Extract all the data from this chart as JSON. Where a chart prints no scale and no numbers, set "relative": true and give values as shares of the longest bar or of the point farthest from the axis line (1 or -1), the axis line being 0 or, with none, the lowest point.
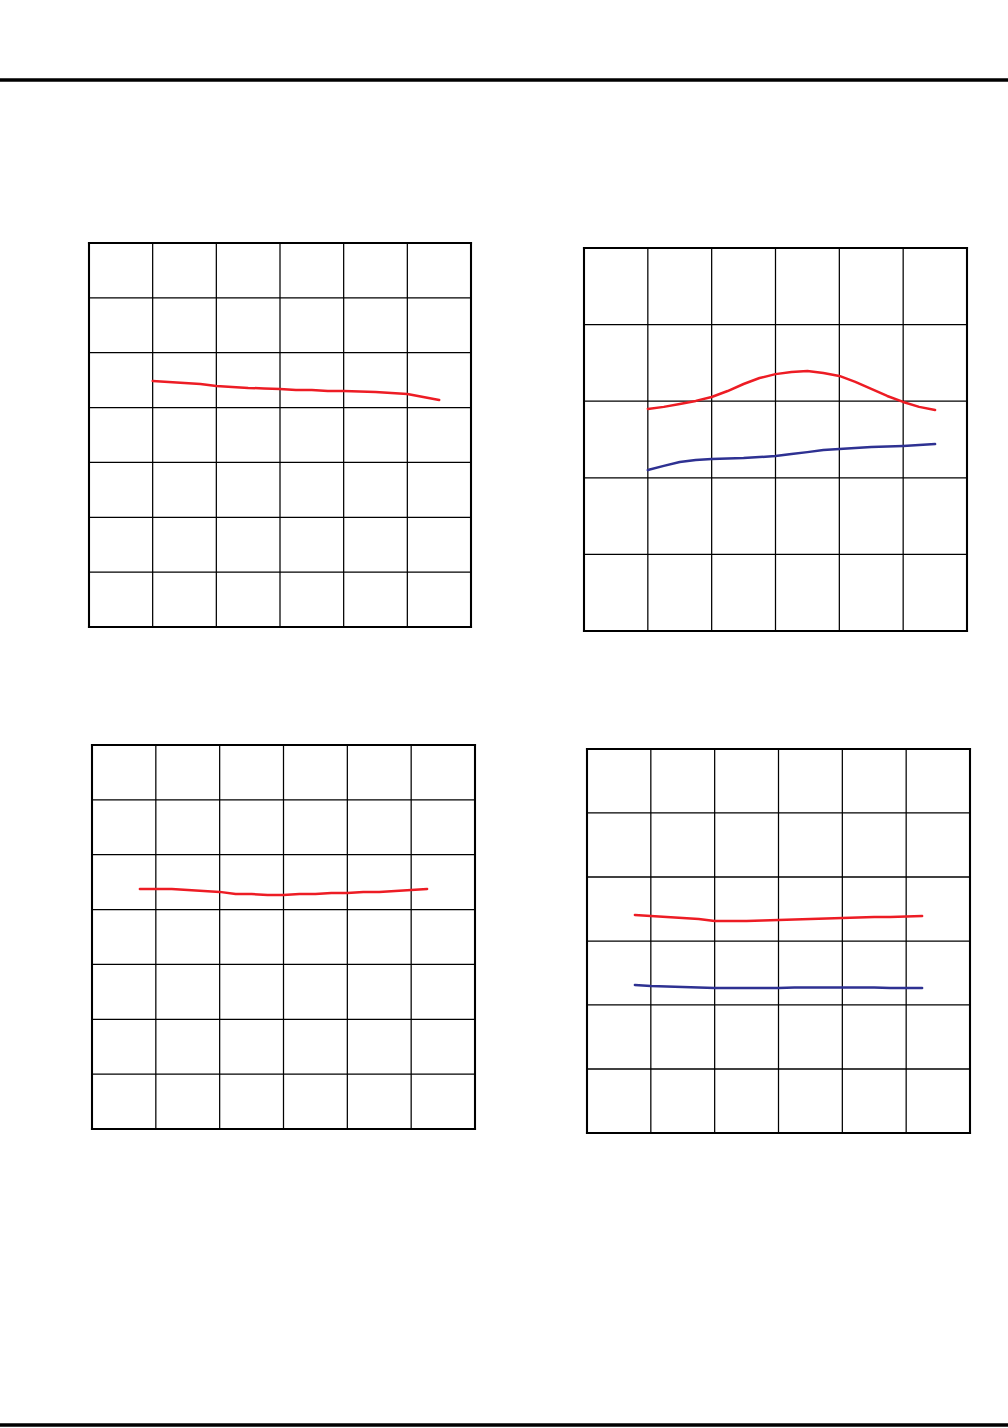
{
  "chart_data": [
    {
      "type": "line",
      "relative": true,
      "grid": true,
      "categories": [
        null,
        null,
        null,
        null,
        null,
        null,
        null,
        null,
        null,
        null,
        null,
        null,
        null,
        null,
        null,
        null,
        null,
        null,
        null,
        null,
        null,
        null,
        null,
        null,
        null
      ],
      "series": [
        {
          "color": "#ed1c24",
          "values": [
            null,
            null,
            null,
            null,
            1,
            0.996,
            0.992,
            0.988,
            0.98,
            0.976,
            0.972,
            0.97,
            0.967,
            0.963,
            0.963,
            0.959,
            0.959,
            0.957,
            0.955,
            0.951,
            0.947,
            0.935,
            0.923,
            null,
            null
          ]
        }
      ]
    },
    {
      "type": "line",
      "relative": true,
      "grid": true,
      "categories": [
        null,
        null,
        null,
        null,
        null,
        null,
        null,
        null,
        null,
        null,
        null,
        null,
        null,
        null,
        null,
        null,
        null,
        null,
        null,
        null,
        null,
        null,
        null,
        null,
        null
      ],
      "series": [
        {
          "color": "#ed1c24",
          "values": [
            null,
            null,
            null,
            null,
            0.854,
            0.862,
            0.873,
            0.885,
            0.9,
            0.923,
            0.95,
            0.973,
            0.988,
            0.996,
            1,
            0.992,
            0.981,
            0.958,
            0.931,
            0.904,
            0.881,
            0.862,
            0.85,
            null,
            null
          ]
        },
        {
          "color": "#2e3192",
          "values": [
            null,
            null,
            null,
            null,
            0.619,
            0.635,
            0.65,
            0.658,
            0.662,
            0.663,
            0.665,
            0.669,
            0.673,
            0.681,
            0.688,
            0.696,
            0.7,
            0.704,
            0.708,
            0.71,
            0.712,
            0.715,
            0.719,
            null,
            null
          ]
        }
      ]
    },
    {
      "type": "line",
      "relative": true,
      "grid": true,
      "categories": [
        null,
        null,
        null,
        null,
        null,
        null,
        null,
        null,
        null,
        null,
        null,
        null,
        null,
        null,
        null,
        null,
        null,
        null,
        null,
        null,
        null,
        null,
        null,
        null,
        null
      ],
      "series": [
        {
          "color": "#ed1c24",
          "values": [
            null,
            null,
            null,
            1,
            1,
            1,
            0.996,
            0.992,
            0.988,
            0.979,
            0.979,
            0.975,
            0.975,
            0.979,
            0.979,
            0.983,
            0.983,
            0.988,
            0.988,
            0.992,
            0.996,
            1,
            null,
            null,
            null
          ]
        }
      ]
    },
    {
      "type": "line",
      "relative": true,
      "grid": true,
      "categories": [
        null,
        null,
        null,
        null,
        null,
        null,
        null,
        null,
        null,
        null,
        null,
        null,
        null,
        null,
        null,
        null,
        null,
        null,
        null,
        null,
        null,
        null,
        null,
        null,
        null
      ],
      "series": [
        {
          "color": "#ed1c24",
          "values": [
            null,
            null,
            null,
            1,
            0.995,
            0.991,
            0.986,
            0.982,
            0.972,
            0.972,
            0.972,
            0.975,
            0.977,
            0.979,
            0.982,
            0.984,
            0.986,
            0.989,
            0.991,
            0.991,
            0.993,
            0.995,
            null,
            null,
            null
          ]
        },
        {
          "color": "#2e3192",
          "values": [
            null,
            null,
            null,
            0.679,
            0.674,
            0.672,
            0.67,
            0.667,
            0.665,
            0.665,
            0.665,
            0.665,
            0.665,
            0.667,
            0.667,
            0.667,
            0.667,
            0.667,
            0.667,
            0.665,
            0.665,
            0.665,
            null,
            null,
            null
          ]
        }
      ]
    }
  ]
}
